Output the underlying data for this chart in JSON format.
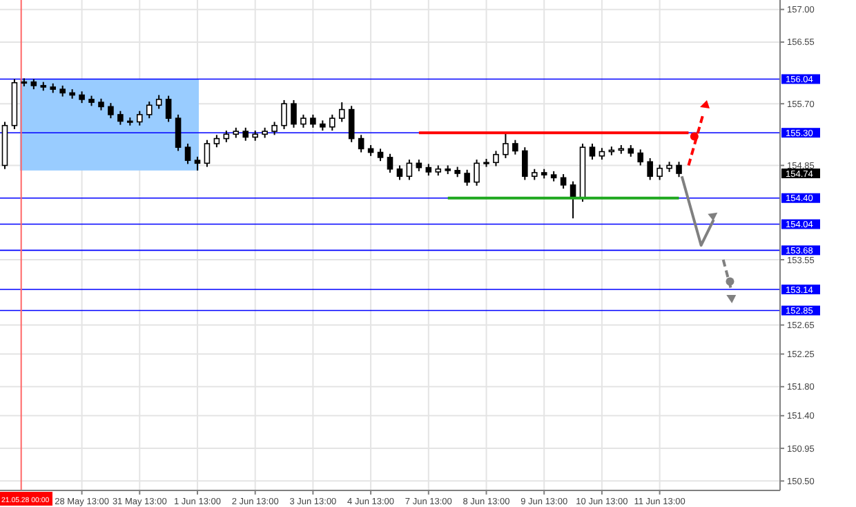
{
  "chart_data": {
    "type": "candlestick",
    "categories": [
      null,
      null,
      null,
      null,
      null,
      null,
      null,
      null,
      "28 May 13:00",
      null,
      null,
      null,
      null,
      null,
      "31 May 13:00",
      null,
      null,
      null,
      null,
      null,
      "1 Jun 13:00",
      null,
      null,
      null,
      null,
      null,
      "2 Jun 13:00",
      null,
      null,
      null,
      null,
      null,
      "3 Jun 13:00",
      null,
      null,
      null,
      null,
      null,
      "4 Jun 13:00",
      null,
      null,
      null,
      null,
      null,
      "7 Jun 13:00",
      null,
      null,
      null,
      null,
      null,
      "8 Jun 13:00",
      null,
      null,
      null,
      null,
      null,
      "9 Jun 13:00",
      null,
      null,
      null,
      null,
      null,
      "10 Jun 13:00",
      null,
      null,
      null,
      null,
      null,
      "11 Jun 13:00",
      null,
      null,
      null,
      null,
      null,
      null,
      null,
      null,
      null,
      null,
      null,
      null
    ],
    "series": [
      {
        "color": "#000000",
        "ohlc": [
          [
            154.85,
            155.45,
            154.8,
            155.4
          ],
          [
            155.4,
            156.04,
            155.35,
            155.99
          ],
          [
            155.99,
            156.05,
            155.94,
            156.0
          ],
          [
            156.0,
            156.04,
            155.9,
            155.95
          ],
          [
            155.95,
            156.0,
            155.88,
            155.93
          ],
          [
            155.93,
            155.98,
            155.85,
            155.9
          ],
          [
            155.9,
            155.95,
            155.8,
            155.85
          ],
          [
            155.85,
            155.9,
            155.77,
            155.82
          ],
          [
            155.82,
            155.87,
            155.71,
            155.76
          ],
          [
            155.76,
            155.81,
            155.67,
            155.72
          ],
          [
            155.72,
            155.77,
            155.61,
            155.66
          ],
          [
            155.66,
            155.71,
            155.5,
            155.55
          ],
          [
            155.55,
            155.6,
            155.41,
            155.46
          ],
          [
            155.46,
            155.51,
            155.4,
            155.45
          ],
          [
            155.45,
            155.6,
            155.4,
            155.55
          ],
          [
            155.55,
            155.73,
            155.5,
            155.68
          ],
          [
            155.68,
            155.82,
            155.63,
            155.76
          ],
          [
            155.76,
            155.81,
            155.45,
            155.5
          ],
          [
            155.5,
            155.55,
            155.05,
            155.1
          ],
          [
            155.1,
            155.15,
            154.87,
            154.92
          ],
          [
            154.92,
            154.97,
            154.78,
            154.88
          ],
          [
            154.88,
            155.2,
            154.83,
            155.15
          ],
          [
            155.15,
            155.27,
            155.1,
            155.22
          ],
          [
            155.22,
            155.33,
            155.17,
            155.28
          ],
          [
            155.28,
            155.37,
            155.23,
            155.32
          ],
          [
            155.32,
            155.37,
            155.19,
            155.24
          ],
          [
            155.24,
            155.33,
            155.19,
            155.28
          ],
          [
            155.28,
            155.37,
            155.23,
            155.32
          ],
          [
            155.32,
            155.45,
            155.27,
            155.4
          ],
          [
            155.4,
            155.75,
            155.35,
            155.7
          ],
          [
            155.7,
            155.75,
            155.37,
            155.42
          ],
          [
            155.42,
            155.55,
            155.37,
            155.5
          ],
          [
            155.5,
            155.55,
            155.37,
            155.42
          ],
          [
            155.42,
            155.47,
            155.33,
            155.38
          ],
          [
            155.38,
            155.55,
            155.33,
            155.5
          ],
          [
            155.5,
            155.72,
            155.45,
            155.62
          ],
          [
            155.62,
            155.67,
            155.17,
            155.22
          ],
          [
            155.22,
            155.27,
            155.03,
            155.08
          ],
          [
            155.08,
            155.13,
            154.98,
            155.03
          ],
          [
            155.03,
            155.08,
            154.91,
            154.96
          ],
          [
            154.96,
            155.01,
            154.75,
            154.8
          ],
          [
            154.8,
            154.85,
            154.65,
            154.7
          ],
          [
            154.7,
            154.93,
            154.65,
            154.88
          ],
          [
            154.88,
            154.93,
            154.77,
            154.82
          ],
          [
            154.82,
            154.87,
            154.71,
            154.76
          ],
          [
            154.76,
            154.85,
            154.71,
            154.8
          ],
          [
            154.8,
            154.85,
            154.73,
            154.78
          ],
          [
            154.78,
            154.83,
            154.69,
            154.74
          ],
          [
            154.74,
            154.79,
            154.57,
            154.62
          ],
          [
            154.62,
            154.93,
            154.57,
            154.88
          ],
          [
            154.88,
            154.94,
            154.83,
            154.89
          ],
          [
            154.89,
            155.05,
            154.84,
            155.0
          ],
          [
            155.0,
            155.3,
            154.95,
            155.15
          ],
          [
            155.15,
            155.2,
            155.0,
            155.05
          ],
          [
            155.05,
            155.1,
            154.65,
            154.7
          ],
          [
            154.7,
            154.8,
            154.65,
            154.75
          ],
          [
            154.75,
            154.8,
            154.67,
            154.72
          ],
          [
            154.72,
            154.77,
            154.63,
            154.68
          ],
          [
            154.68,
            154.73,
            154.53,
            154.58
          ],
          [
            154.58,
            154.63,
            154.12,
            154.4
          ],
          [
            154.4,
            155.15,
            154.35,
            155.1
          ],
          [
            155.1,
            155.15,
            154.93,
            154.98
          ],
          [
            154.98,
            155.09,
            154.93,
            155.04
          ],
          [
            155.04,
            155.11,
            154.99,
            155.06
          ],
          [
            155.06,
            155.13,
            155.01,
            155.08
          ],
          [
            155.08,
            155.13,
            154.97,
            155.02
          ],
          [
            155.02,
            155.07,
            154.85,
            154.9
          ],
          [
            154.9,
            154.95,
            154.65,
            154.7
          ],
          [
            154.7,
            154.86,
            154.65,
            154.81
          ],
          [
            154.81,
            154.9,
            154.76,
            154.85
          ],
          [
            154.85,
            154.9,
            154.69,
            154.74
          ],
          null,
          null,
          null,
          null,
          null,
          null,
          null,
          null,
          null,
          null
        ]
      },
      {
        "type": "line",
        "color": "#ff0000",
        "values": [
          null,
          null,
          null,
          null,
          null,
          null,
          null,
          null,
          null,
          null,
          null,
          null,
          null,
          null,
          null,
          null,
          null,
          null,
          null,
          null,
          null,
          null,
          null,
          null,
          null,
          null,
          null,
          null,
          null,
          null,
          null,
          null,
          null,
          null,
          null,
          null,
          null,
          null,
          null,
          null,
          null,
          null,
          null,
          155.3,
          155.3,
          155.3,
          155.3,
          155.3,
          155.3,
          155.3,
          155.3,
          155.3,
          155.3,
          155.3,
          155.3,
          155.3,
          155.3,
          155.3,
          155.3,
          155.3,
          155.3,
          155.3,
          155.3,
          155.3,
          155.3,
          155.3,
          155.3,
          155.3,
          155.3,
          155.3,
          155.3,
          155.3,
          null,
          null,
          null,
          null,
          null,
          null,
          null,
          null,
          null
        ]
      },
      {
        "type": "line",
        "color": "#1fa81f",
        "values": [
          null,
          null,
          null,
          null,
          null,
          null,
          null,
          null,
          null,
          null,
          null,
          null,
          null,
          null,
          null,
          null,
          null,
          null,
          null,
          null,
          null,
          null,
          null,
          null,
          null,
          null,
          null,
          null,
          null,
          null,
          null,
          null,
          null,
          null,
          null,
          null,
          null,
          null,
          null,
          null,
          null,
          null,
          null,
          null,
          null,
          null,
          154.4,
          154.4,
          154.4,
          154.4,
          154.4,
          154.4,
          154.4,
          154.4,
          154.4,
          154.4,
          154.4,
          154.4,
          154.4,
          154.4,
          154.4,
          154.4,
          154.4,
          154.4,
          154.4,
          154.4,
          154.4,
          154.4,
          154.4,
          154.4,
          154.4,
          null,
          null,
          null,
          null,
          null,
          null,
          null,
          null,
          null,
          null
        ]
      }
    ],
    "ylim": [
      150.37,
      157.13
    ],
    "yticks": [
      {
        "value": 157.0,
        "label": "157.00"
      },
      {
        "value": 156.55,
        "label": "156.55"
      },
      {
        "value": 155.7,
        "label": "155.70"
      },
      {
        "value": 154.85,
        "label": "154.85"
      },
      {
        "value": 153.55,
        "label": "153.55"
      },
      {
        "value": 152.65,
        "label": "152.65"
      },
      {
        "value": 152.25,
        "label": "152.25"
      },
      {
        "value": 151.8,
        "label": "151.80"
      },
      {
        "value": 151.4,
        "label": "151.40"
      },
      {
        "value": 150.95,
        "label": "150.95"
      },
      {
        "value": 150.5,
        "label": "150.50"
      }
    ],
    "grid": true,
    "ref_lines": [
      {
        "axis": "y",
        "value": 156.04,
        "label": "156.04",
        "color": "#0000ff"
      },
      {
        "axis": "y",
        "value": 155.3,
        "label": "155.30",
        "color": "#0000ff"
      },
      {
        "axis": "y",
        "value": 154.4,
        "label": "154.40",
        "color": "#0000ff"
      },
      {
        "axis": "y",
        "value": 154.04,
        "label": "154.04",
        "color": "#0000ff"
      },
      {
        "axis": "y",
        "value": 153.68,
        "label": "153.68",
        "color": "#0000ff"
      },
      {
        "axis": "y",
        "value": 153.14,
        "label": "153.14",
        "color": "#0000ff"
      },
      {
        "axis": "y",
        "value": 152.85,
        "label": "152.85",
        "color": "#0000ff"
      }
    ],
    "annotations": [
      "21.05.28 00:00",
      "154.74"
    ]
  }
}
